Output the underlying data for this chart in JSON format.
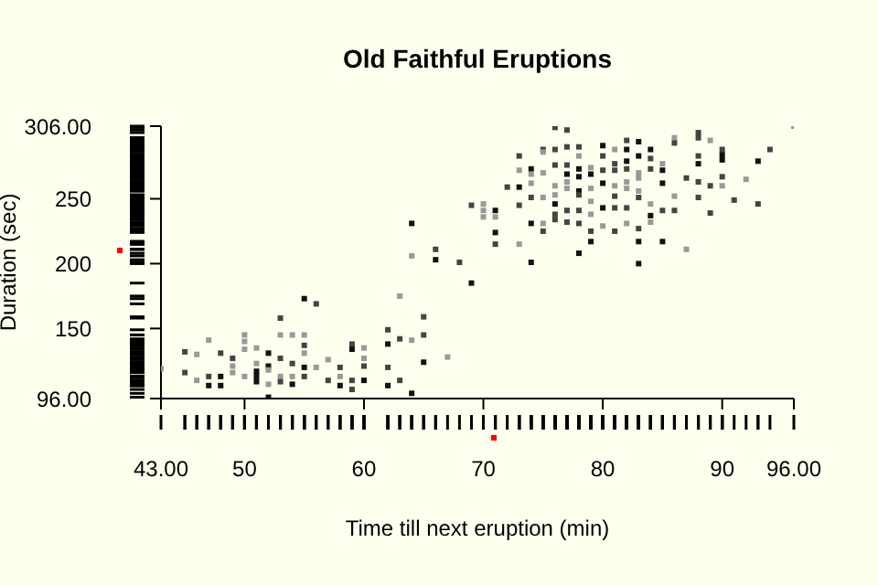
{
  "chart_data": {
    "type": "scatter",
    "title": "Old Faithful Eruptions",
    "xlabel": "Time till next eruption (min)",
    "ylabel": "Duration (sec)",
    "xlim": [
      43,
      96
    ],
    "ylim": [
      96,
      306
    ],
    "xticks": [
      {
        "value": 43,
        "label": "43.00"
      },
      50,
      60,
      70,
      80,
      90,
      {
        "value": 96,
        "label": "96.00"
      }
    ],
    "yticks": [
      {
        "value": 96,
        "label": "96.00"
      },
      150,
      200,
      250,
      {
        "value": 306,
        "label": "306.00"
      }
    ],
    "marker": "square",
    "grid": false,
    "legend": false,
    "x": [
      43,
      45,
      45,
      46,
      46,
      47,
      47,
      47,
      48,
      48,
      48,
      49,
      49,
      49,
      50,
      50,
      50,
      50,
      51,
      51,
      51,
      51,
      51,
      52,
      52,
      52,
      52,
      52,
      53,
      53,
      53,
      53,
      53,
      54,
      54,
      54,
      54,
      55,
      55,
      55,
      55,
      55,
      55,
      56,
      56,
      57,
      57,
      58,
      58,
      58,
      59,
      59,
      59,
      59,
      60,
      60,
      60,
      60,
      62,
      62,
      62,
      62,
      63,
      63,
      63,
      64,
      64,
      65,
      65,
      65,
      67,
      69,
      64,
      64,
      66,
      66,
      68,
      69,
      70,
      70,
      70,
      71,
      71,
      71,
      71,
      73,
      72,
      73,
      73,
      73,
      73,
      74,
      74,
      74,
      74,
      74,
      74,
      75,
      75,
      75,
      75,
      75,
      75,
      76,
      76,
      76,
      76,
      76,
      76,
      76,
      76,
      77,
      77,
      77,
      77,
      77,
      77,
      77,
      77,
      78,
      78,
      78,
      78,
      78,
      78,
      78,
      78,
      78,
      79,
      79,
      79,
      79,
      79,
      79,
      79,
      80,
      80,
      80,
      80,
      80,
      80,
      81,
      81,
      81,
      81,
      81,
      81,
      81,
      82,
      82,
      82,
      82,
      82,
      82,
      82,
      82,
      83,
      83,
      83,
      83,
      83,
      83,
      83,
      83,
      83,
      84,
      84,
      84,
      84,
      84,
      84,
      85,
      85,
      85,
      85,
      85,
      86,
      86,
      86,
      86,
      87,
      87,
      88,
      88,
      88,
      88,
      88,
      88,
      89,
      89,
      89,
      90,
      90,
      90,
      90,
      90,
      91,
      92,
      93,
      93,
      94,
      96
    ],
    "values": [
      119,
      132,
      116,
      130,
      110,
      141,
      113,
      106,
      131,
      113,
      106,
      127,
      121,
      116,
      145,
      140,
      134,
      113,
      135,
      123,
      117,
      113,
      109,
      131,
      121,
      118,
      107,
      97,
      158,
      145,
      127,
      113,
      109,
      145,
      123,
      113,
      107,
      173,
      145,
      137,
      131,
      120,
      113,
      169,
      120,
      126,
      110,
      120,
      113,
      106,
      138,
      134,
      110,
      103,
      135,
      127,
      121,
      110,
      149,
      138,
      120,
      106,
      175,
      142,
      110,
      141,
      100,
      159,
      145,
      124,
      128,
      185,
      231,
      206,
      211,
      203,
      201,
      245,
      246,
      241,
      236,
      241,
      236,
      224,
      215,
      215,
      259,
      283,
      272,
      259,
      245,
      273,
      269,
      262,
      251,
      231,
      201,
      288,
      286,
      270,
      251,
      231,
      225,
      305,
      288,
      276,
      260,
      253,
      246,
      238,
      234,
      303,
      290,
      276,
      269,
      263,
      258,
      241,
      232,
      290,
      283,
      273,
      267,
      256,
      253,
      241,
      231,
      208,
      274,
      269,
      258,
      248,
      238,
      225,
      217,
      291,
      283,
      272,
      262,
      243,
      229,
      288,
      277,
      272,
      260,
      252,
      243,
      225,
      295,
      288,
      279,
      273,
      263,
      258,
      243,
      231,
      294,
      283,
      270,
      266,
      256,
      251,
      227,
      217,
      200,
      288,
      281,
      273,
      246,
      237,
      232,
      277,
      272,
      262,
      241,
      217,
      297,
      293,
      252,
      241,
      266,
      211,
      301,
      297,
      283,
      277,
      263,
      251,
      295,
      260,
      239,
      288,
      284,
      280,
      267,
      260,
      249,
      265,
      279,
      246,
      288,
      306
    ],
    "colors": [
      "#999999",
      "#444444",
      "#444444",
      "#999999",
      "#999999",
      "#999999",
      "#444444",
      "#111111",
      "#444444",
      "#111111",
      "#111111",
      "#444444",
      "#999999",
      "#999999",
      "#999999",
      "#999999",
      "#999999",
      "#999999",
      "#999999",
      "#999999",
      "#111111",
      "#111111",
      "#111111",
      "#111111",
      "#111111",
      "#999999",
      "#999999",
      "#111111",
      "#444444",
      "#999999",
      "#444444",
      "#999999",
      "#444444",
      "#999999",
      "#444444",
      "#999999",
      "#111111",
      "#111111",
      "#999999",
      "#444444",
      "#999999",
      "#111111",
      "#444444",
      "#444444",
      "#999999",
      "#999999",
      "#444444",
      "#444444",
      "#999999",
      "#111111",
      "#444444",
      "#111111",
      "#444444",
      "#444444",
      "#999999",
      "#999999",
      "#444444",
      "#111111",
      "#444444",
      "#111111",
      "#444444",
      "#111111",
      "#999999",
      "#444444",
      "#444444",
      "#999999",
      "#111111",
      "#444444",
      "#444444",
      "#111111",
      "#999999",
      "#111111",
      "#111111",
      "#999999",
      "#444444",
      "#111111",
      "#444444",
      "#444444",
      "#999999",
      "#999999",
      "#999999",
      "#111111",
      "#999999",
      "#111111",
      "#444444",
      "#999999",
      "#444444",
      "#444444",
      "#999999",
      "#111111",
      "#444444",
      "#111111",
      "#999999",
      "#999999",
      "#444444",
      "#111111",
      "#111111",
      "#444444",
      "#999999",
      "#999999",
      "#999999",
      "#999999",
      "#444444",
      "#444444",
      "#444444",
      "#444444",
      "#999999",
      "#999999",
      "#111111",
      "#444444",
      "#444444",
      "#444444",
      "#444444",
      "#444444",
      "#111111",
      "#999999",
      "#999999",
      "#444444",
      "#444444",
      "#444444",
      "#999999",
      "#111111",
      "#111111",
      "#111111",
      "#444444",
      "#444444",
      "#444444",
      "#111111",
      "#999999",
      "#111111",
      "#999999",
      "#999999",
      "#999999",
      "#444444",
      "#111111",
      "#111111",
      "#444444",
      "#444444",
      "#111111",
      "#111111",
      "#999999",
      "#999999",
      "#444444",
      "#444444",
      "#999999",
      "#444444",
      "#444444",
      "#444444",
      "#444444",
      "#111111",
      "#111111",
      "#444444",
      "#999999",
      "#999999",
      "#444444",
      "#999999",
      "#111111",
      "#111111",
      "#999999",
      "#999999",
      "#999999",
      "#444444",
      "#444444",
      "#111111",
      "#111111",
      "#111111",
      "#444444",
      "#444444",
      "#999999",
      "#111111",
      "#999999",
      "#999999",
      "#111111",
      "#111111",
      "#444444",
      "#111111",
      "#999999",
      "#444444",
      "#999999",
      "#444444",
      "#444444",
      "#999999",
      "#444444",
      "#444444",
      "#444444",
      "#111111",
      "#444444",
      "#444444",
      "#999999",
      "#444444",
      "#444444",
      "#444444",
      "#111111",
      "#111111",
      "#444444",
      "#999999",
      "#444444",
      "#999999",
      "#111111",
      "#444444",
      "#444444",
      "#999999"
    ]
  }
}
